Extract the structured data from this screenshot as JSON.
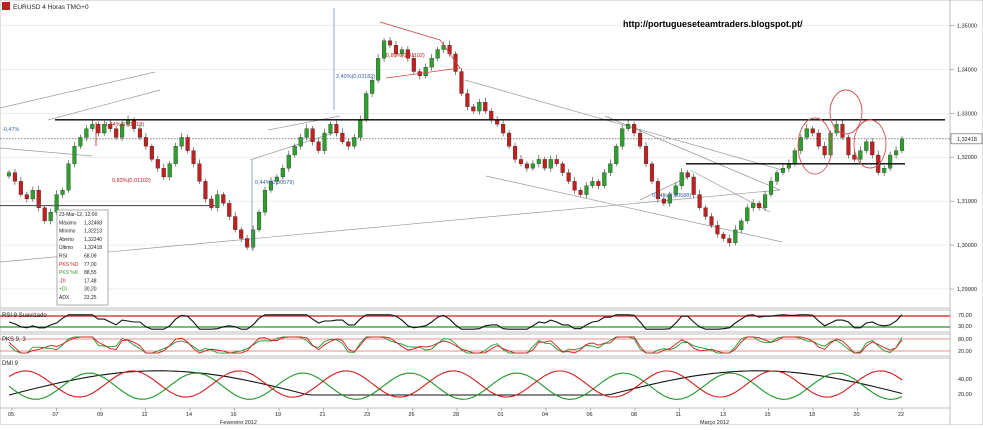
{
  "header": {
    "title": "EURUSD 4 Horas TMG+0",
    "url": "http://portugueseteamtraders.blogspot.pt/"
  },
  "annotations": {
    "fib_1": "2,40%(0,03182)",
    "fib_2": "0,80%(0,01102)",
    "fib_3": "0,83%(0,01102)",
    "fib_4": "0,44%(0,00588)",
    "fib_5": "0,44%(0,00579)",
    "fib_6": "1,44%(0,01718)",
    "fib_7": "0,47%",
    "left_marker": "-0,47%"
  },
  "info_box": [
    {
      "label": "23-Mar-12, 12:00",
      "value": ""
    },
    {
      "label": "Máximo",
      "value": "1,32468"
    },
    {
      "label": "Mínimo",
      "value": "1,32213"
    },
    {
      "label": "Aberto",
      "value": "1,32240"
    },
    {
      "label": "Último",
      "value": "1,32418"
    },
    {
      "label": "RSI",
      "value": "68,09"
    },
    {
      "label": "PKS %D",
      "value": "77,00"
    },
    {
      "label": "PKS %K",
      "value": "88,55"
    },
    {
      "label": "-DI",
      "value": "17,48"
    },
    {
      "label": "+DI",
      "value": "30,20"
    },
    {
      "label": "ADX",
      "value": "23,25"
    }
  ],
  "panels": {
    "rsi": {
      "label": "RSI 9 Suavizado",
      "ticks": [
        "70,00",
        "30,00"
      ]
    },
    "stoch": {
      "label": "PKS 9, 3",
      "ticks": [
        "80,00",
        "20,00"
      ]
    },
    "dmi": {
      "label": "DMI 9",
      "ticks": [
        "40,00",
        "20,00"
      ]
    }
  },
  "colors": {
    "up": "#2e9e2e",
    "down": "#c0201f",
    "grid": "#dcdcdc",
    "panel_bg": "#ffffff",
    "red_line": "#d11c1c",
    "green_line": "#1c9a2a",
    "black_line": "#111111"
  },
  "chart_data": {
    "type": "candlestick",
    "instrument": "EURUSD 4 Horas TMG+0",
    "y_ticks": [
      "1,35000",
      "1,34000",
      "1,33000",
      "1,32418",
      "1,32000",
      "1,31000",
      "1,30000",
      "1,29000"
    ],
    "ylim": [
      1.2875,
      1.3535
    ],
    "current_price": 1.32418,
    "x_ticks": [
      "05",
      "07",
      "09",
      "12",
      "14",
      "16",
      "19",
      "21",
      "23",
      "26",
      "28",
      "01",
      "04",
      "06",
      "08",
      "11",
      "13",
      "15",
      "18",
      "20",
      "22"
    ],
    "month_labels": [
      "Fevereiro 2012",
      "Março 2012"
    ],
    "horizontal_levels": [
      1.3285,
      1.3185
    ],
    "closes": [
      1.3165,
      1.3145,
      1.3115,
      1.3105,
      1.3125,
      1.3085,
      1.3055,
      1.3075,
      1.3115,
      1.3125,
      1.3185,
      1.3225,
      1.3245,
      1.3265,
      1.3275,
      1.3255,
      1.3275,
      1.3265,
      1.3245,
      1.3275,
      1.3285,
      1.3265,
      1.3245,
      1.3225,
      1.3195,
      1.3175,
      1.3155,
      1.3185,
      1.3225,
      1.3245,
      1.3215,
      1.3185,
      1.3145,
      1.3105,
      1.3085,
      1.3115,
      1.3095,
      1.3065,
      1.3035,
      1.3015,
      1.2995,
      1.3035,
      1.3075,
      1.3125,
      1.3145,
      1.3155,
      1.3175,
      1.3205,
      1.3225,
      1.3245,
      1.3265,
      1.3235,
      1.3215,
      1.3255,
      1.3275,
      1.3255,
      1.3235,
      1.3225,
      1.3245,
      1.3285,
      1.3345,
      1.3375,
      1.3425,
      1.3465,
      1.3455,
      1.3435,
      1.3445,
      1.3425,
      1.3395,
      1.3385,
      1.3405,
      1.3425,
      1.3445,
      1.3455,
      1.3435,
      1.3395,
      1.3345,
      1.3315,
      1.3305,
      1.3325,
      1.3305,
      1.3285,
      1.3275,
      1.3255,
      1.3225,
      1.3195,
      1.3185,
      1.3175,
      1.3185,
      1.3195,
      1.3175,
      1.3195,
      1.3185,
      1.3165,
      1.3145,
      1.3125,
      1.3115,
      1.3135,
      1.3145,
      1.3135,
      1.3165,
      1.3185,
      1.3225,
      1.3265,
      1.3275,
      1.3255,
      1.3225,
      1.3185,
      1.3145,
      1.3105,
      1.3095,
      1.3115,
      1.3135,
      1.3165,
      1.3155,
      1.3115,
      1.3085,
      1.3065,
      1.3045,
      1.3025,
      1.3015,
      1.3005,
      1.3035,
      1.3055,
      1.3085,
      1.3095,
      1.3085,
      1.3115,
      1.3145,
      1.3165,
      1.3175,
      1.3185,
      1.3215,
      1.3245,
      1.3265,
      1.3255,
      1.3225,
      1.3205,
      1.3255,
      1.3275,
      1.3245,
      1.3205,
      1.3195,
      1.3215,
      1.3235,
      1.3205,
      1.3165,
      1.3175,
      1.3205,
      1.3215,
      1.3242
    ]
  }
}
